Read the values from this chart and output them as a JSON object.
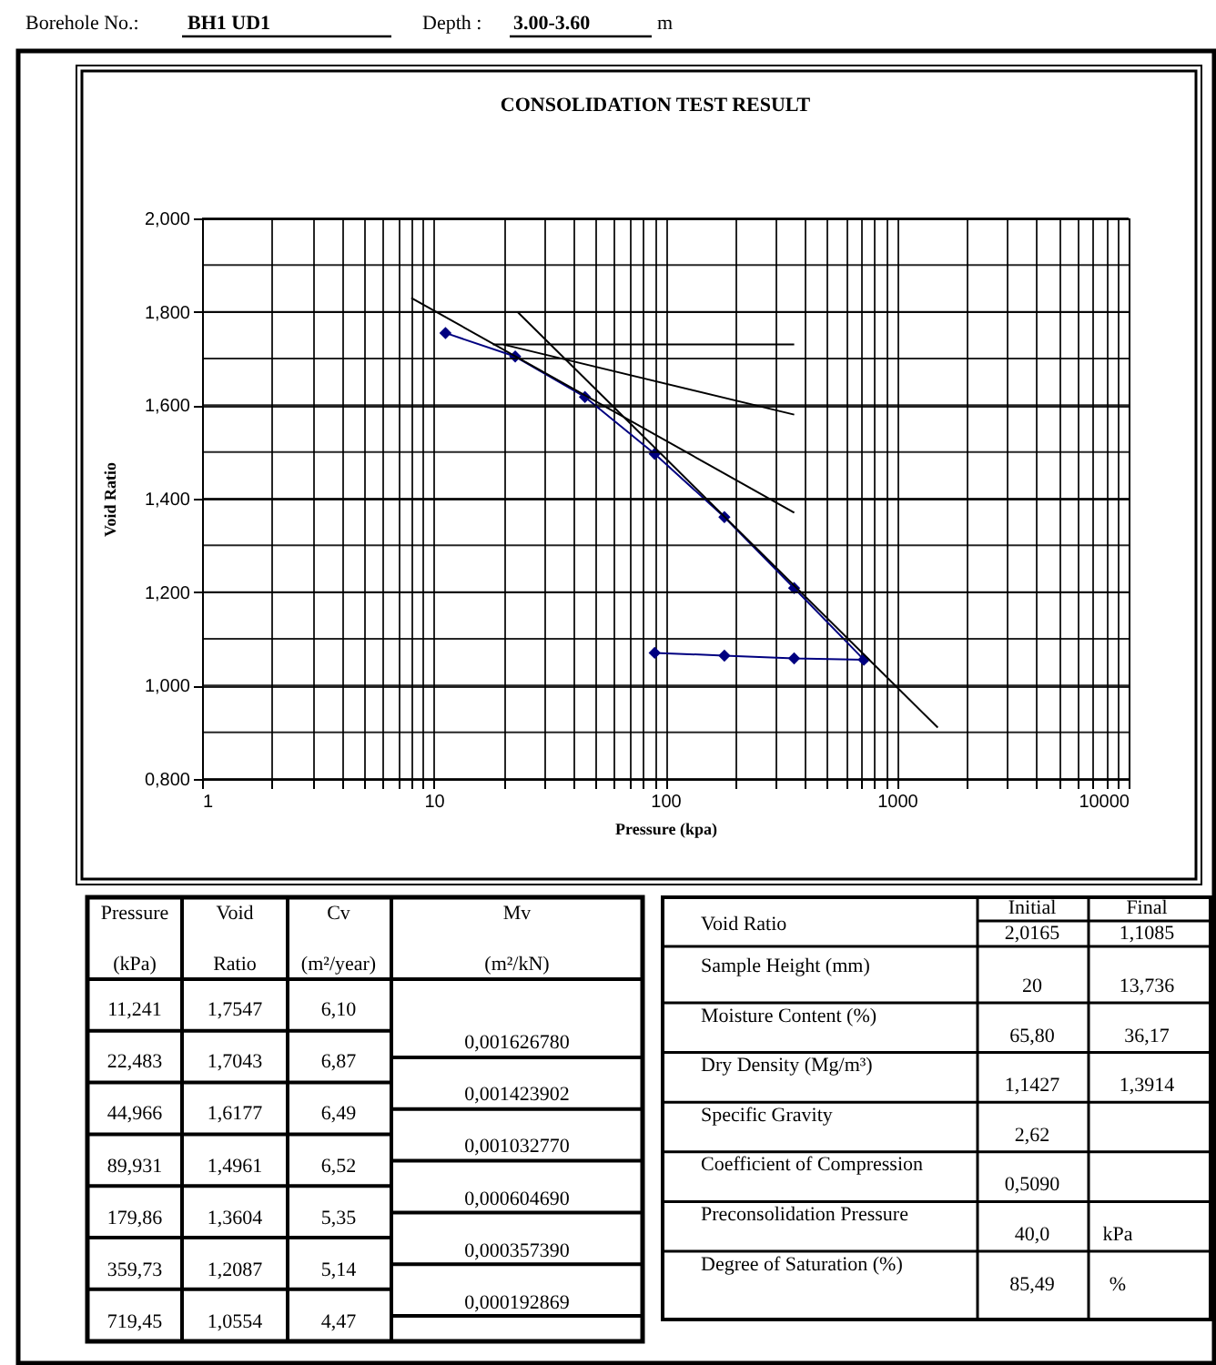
{
  "chart_data": {
    "type": "line",
    "title": "CONSOLIDATION TEST RESULT",
    "xlabel": "Pressure (kpa)",
    "ylabel": "Void Ratio",
    "log": "x",
    "grid": true,
    "xlim": [
      1,
      10000
    ],
    "ylim": [
      0.8,
      2.0
    ],
    "xticks": [
      1,
      {
        "value": 2,
        "label": null
      },
      {
        "value": 3,
        "label": null
      },
      {
        "value": 4,
        "label": null
      },
      {
        "value": 5,
        "label": null
      },
      {
        "value": 6,
        "label": null
      },
      {
        "value": 7,
        "label": null
      },
      {
        "value": 8,
        "label": null
      },
      {
        "value": 9,
        "label": null
      },
      10,
      {
        "value": 20,
        "label": null
      },
      {
        "value": 30,
        "label": null
      },
      {
        "value": 40,
        "label": null
      },
      {
        "value": 50,
        "label": null
      },
      {
        "value": 60,
        "label": null
      },
      {
        "value": 70,
        "label": null
      },
      {
        "value": 80,
        "label": null
      },
      {
        "value": 90,
        "label": null
      },
      100,
      {
        "value": 200,
        "label": null
      },
      {
        "value": 300,
        "label": null
      },
      {
        "value": 400,
        "label": null
      },
      {
        "value": 500,
        "label": null
      },
      {
        "value": 600,
        "label": null
      },
      {
        "value": 700,
        "label": null
      },
      {
        "value": 800,
        "label": null
      },
      {
        "value": 900,
        "label": null
      },
      1000,
      {
        "value": 2000,
        "label": null
      },
      {
        "value": 3000,
        "label": null
      },
      {
        "value": 4000,
        "label": null
      },
      {
        "value": 5000,
        "label": null
      },
      {
        "value": 6000,
        "label": null
      },
      {
        "value": 7000,
        "label": null
      },
      {
        "value": 8000,
        "label": null
      },
      {
        "value": 9000,
        "label": null
      },
      10000
    ],
    "yticks": [
      {
        "value": 0.8,
        "label": "0,800"
      },
      {
        "value": 0.9,
        "label": null
      },
      {
        "value": 1.0,
        "label": "1,000"
      },
      {
        "value": 1.1,
        "label": null
      },
      {
        "value": 1.2,
        "label": "1,200"
      },
      {
        "value": 1.3,
        "label": null
      },
      {
        "value": 1.4,
        "label": "1,400"
      },
      {
        "value": 1.5,
        "label": null
      },
      {
        "value": 1.6,
        "label": "1,600"
      },
      {
        "value": 1.7,
        "label": null
      },
      {
        "value": 1.8,
        "label": "1,800"
      },
      {
        "value": 1.9,
        "label": null
      },
      {
        "value": 2.0,
        "label": "2,000"
      }
    ],
    "series": [
      {
        "marker": "diamond",
        "color": "#000080",
        "x": [
          11.241,
          22.483,
          44.966,
          89.931,
          179.86,
          359.73,
          719.45
        ],
        "values": [
          1.7547,
          1.7043,
          1.6177,
          1.4961,
          1.3604,
          1.2087,
          1.0554
        ]
      },
      {
        "marker": "diamond",
        "color": "#000080",
        "x": [
          89.931,
          179.86,
          359.73,
          719.45
        ],
        "values": [
          1.07,
          1.064,
          1.058,
          1.0554
        ]
      },
      {
        "marker": "none",
        "color": "#000000",
        "x": [
          18,
          360
        ],
        "values": [
          1.73,
          1.73
        ]
      },
      {
        "marker": "none",
        "color": "#000000",
        "x": [
          20,
          360
        ],
        "values": [
          1.73,
          1.58
        ]
      },
      {
        "marker": "none",
        "color": "#000000",
        "x": [
          8,
          360
        ],
        "values": [
          1.83,
          1.37
        ]
      },
      {
        "marker": "none",
        "color": "#000000",
        "x": [
          23,
          1500
        ],
        "values": [
          1.8,
          0.91
        ]
      }
    ],
    "annotations": [
      "Borehole No.:",
      "BH1 UD1",
      "Depth  :",
      "3.00-3.60",
      "m",
      "Pressure",
      "Void",
      "Cv",
      "Mv",
      "(kPa)",
      "Ratio",
      "(m²/year)",
      "(m²/kN)",
      "11,241",
      "1,7547",
      "6,10",
      "22,483",
      "1,7043",
      "6,87",
      "44,966",
      "1,6177",
      "6,49",
      "89,931",
      "1,4961",
      "6,52",
      "179,86",
      "1,3604",
      "5,35",
      "359,73",
      "1,2087",
      "5,14",
      "719,45",
      "1,0554",
      "4,47",
      "0,001626780",
      "0,001423902",
      "0,001032770",
      "0,000604690",
      "0,000357390",
      "0,000192869",
      "Void Ratio",
      "Initial",
      "Final",
      "2,0165",
      "1,1085",
      "Sample Height (mm)",
      "20",
      "13,736",
      "Moisture Content (%)",
      "65,80",
      "36,17",
      "Dry Density (Mg/m³)",
      "1,1427",
      "1,3914",
      "Specific Gravity",
      "2,62",
      "Coefficient of Compression",
      "0,5090",
      "Preconsolidation Pressure",
      "40,0",
      "kPa",
      "Degree of Saturation (%)",
      "85,49",
      "%"
    ]
  }
}
